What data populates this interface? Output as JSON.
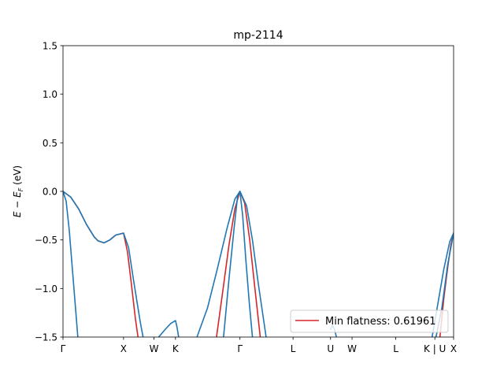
{
  "chart_data": {
    "type": "line",
    "title": "mp-2114",
    "ylabel": "E − E_F (eV)",
    "ylabel_parts": {
      "E": "E",
      "minus": " − ",
      "EF": "E",
      "F": "F",
      "unit": " (eV)"
    },
    "xlabel": "",
    "xlim": [
      0,
      1
    ],
    "ylim": [
      -1.5,
      1.5
    ],
    "yticks": [
      -1.5,
      -1.0,
      -0.5,
      0.0,
      0.5,
      1.0,
      1.5
    ],
    "ytick_labels": [
      "−1.5",
      "−1.0",
      "−0.5",
      "0.0",
      "0.5",
      "1.0",
      "1.5"
    ],
    "xticks": [
      {
        "label": "Γ",
        "x": 0.0
      },
      {
        "label": "X",
        "x": 0.155
      },
      {
        "label": "W",
        "x": 0.233
      },
      {
        "label": "K",
        "x": 0.288
      },
      {
        "label": "Γ",
        "x": 0.453
      },
      {
        "label": "L",
        "x": 0.589
      },
      {
        "label": "U",
        "x": 0.685
      },
      {
        "label": "W",
        "x": 0.74
      },
      {
        "label": "L",
        "x": 0.852
      },
      {
        "label": "K | U",
        "x": 0.952
      },
      {
        "label": "X",
        "x": 1.0
      }
    ],
    "legend": {
      "placement": "lower-right",
      "entries": [
        {
          "label": "Min flatness: 0.61961",
          "color": "#d62728"
        }
      ]
    },
    "grid": false,
    "series": [
      {
        "name": "Min flatness: 0.61961",
        "color": "#d62728",
        "segments": [
          [
            [
              0.0,
              0.0
            ],
            [
              0.02,
              -0.06
            ],
            [
              0.04,
              -0.18
            ],
            [
              0.06,
              -0.34
            ],
            [
              0.08,
              -0.47
            ],
            [
              0.09,
              -0.51
            ],
            [
              0.105,
              -0.53
            ],
            [
              0.12,
              -0.5
            ],
            [
              0.135,
              -0.45
            ],
            [
              0.155,
              -0.43
            ],
            [
              0.165,
              -0.62
            ],
            [
              0.175,
              -0.95
            ],
            [
              0.185,
              -1.3
            ],
            [
              0.192,
              -1.5
            ]
          ],
          [
            [
              0.393,
              -1.5
            ],
            [
              0.41,
              -1.0
            ],
            [
              0.425,
              -0.55
            ],
            [
              0.44,
              -0.18
            ],
            [
              0.453,
              0.0
            ],
            [
              0.465,
              -0.12
            ],
            [
              0.478,
              -0.5
            ],
            [
              0.49,
              -0.95
            ],
            [
              0.505,
              -1.5
            ]
          ],
          [
            [
              0.965,
              -1.5
            ],
            [
              0.975,
              -1.1
            ],
            [
              0.985,
              -0.78
            ],
            [
              0.993,
              -0.55
            ],
            [
              1.0,
              -0.43
            ]
          ]
        ]
      },
      {
        "name": "",
        "color": "#1f77b4",
        "segments": [
          [
            [
              0.0,
              0.0
            ],
            [
              0.02,
              -0.06
            ],
            [
              0.04,
              -0.18
            ],
            [
              0.06,
              -0.34
            ],
            [
              0.08,
              -0.47
            ],
            [
              0.09,
              -0.51
            ],
            [
              0.105,
              -0.53
            ],
            [
              0.12,
              -0.5
            ],
            [
              0.135,
              -0.45
            ],
            [
              0.155,
              -0.43
            ],
            [
              0.168,
              -0.58
            ],
            [
              0.18,
              -0.9
            ],
            [
              0.19,
              -1.15
            ],
            [
              0.198,
              -1.35
            ],
            [
              0.205,
              -1.5
            ]
          ],
          [
            [
              0.0,
              0.0
            ],
            [
              0.008,
              -0.1
            ],
            [
              0.016,
              -0.4
            ],
            [
              0.024,
              -0.8
            ],
            [
              0.032,
              -1.2
            ],
            [
              0.038,
              -1.5
            ]
          ],
          [
            [
              0.245,
              -1.5
            ],
            [
              0.262,
              -1.42
            ],
            [
              0.276,
              -1.36
            ],
            [
              0.288,
              -1.33
            ],
            [
              0.292,
              -1.4
            ],
            [
              0.296,
              -1.5
            ]
          ],
          [
            [
              0.343,
              -1.5
            ],
            [
              0.37,
              -1.2
            ],
            [
              0.395,
              -0.8
            ],
            [
              0.42,
              -0.38
            ],
            [
              0.44,
              -0.08
            ],
            [
              0.453,
              0.0
            ],
            [
              0.47,
              -0.15
            ],
            [
              0.485,
              -0.5
            ],
            [
              0.5,
              -0.95
            ],
            [
              0.512,
              -1.28
            ],
            [
              0.52,
              -1.5
            ]
          ],
          [
            [
              0.411,
              -1.5
            ],
            [
              0.425,
              -0.9
            ],
            [
              0.438,
              -0.38
            ],
            [
              0.447,
              -0.05
            ],
            [
              0.453,
              0.0
            ],
            [
              0.46,
              -0.25
            ],
            [
              0.468,
              -0.7
            ],
            [
              0.477,
              -1.15
            ],
            [
              0.485,
              -1.5
            ]
          ],
          [
            [
              0.685,
              -1.42
            ],
            [
              0.69,
              -1.38
            ],
            [
              0.695,
              -1.42
            ],
            [
              0.7,
              -1.5
            ]
          ],
          [
            [
              0.945,
              -1.5
            ],
            [
              0.96,
              -1.15
            ],
            [
              0.975,
              -0.8
            ],
            [
              0.99,
              -0.52
            ],
            [
              1.0,
              -0.43
            ]
          ],
          [
            [
              0.955,
              -1.5
            ],
            [
              0.97,
              -1.2
            ],
            [
              0.985,
              -0.75
            ],
            [
              1.0,
              -0.43
            ]
          ]
        ]
      }
    ]
  }
}
